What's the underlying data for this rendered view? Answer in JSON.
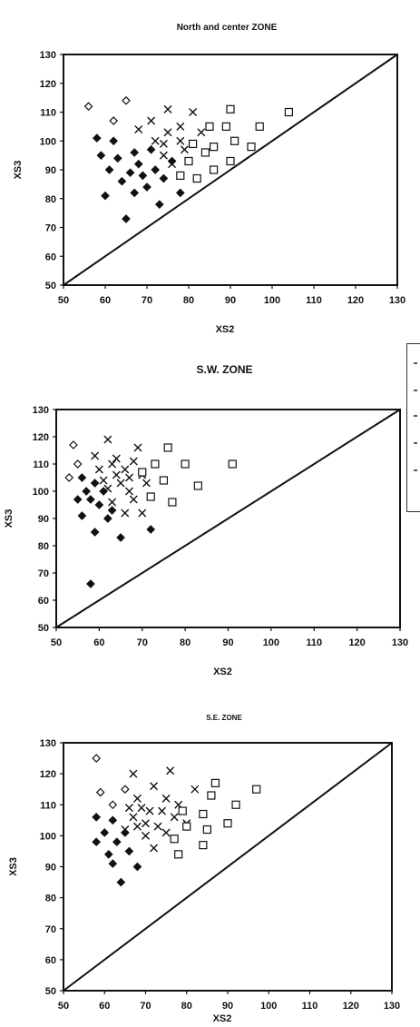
{
  "chart_data": [
    {
      "type": "scatter",
      "title": "North and center ZONE",
      "xlabel": "XS2",
      "ylabel": "XS3",
      "xlim": [
        50,
        130
      ],
      "ylim": [
        50,
        130
      ],
      "xticks": [
        "50",
        "60",
        "70",
        "80",
        "90",
        "100",
        "110",
        "120",
        "130"
      ],
      "yticks": [
        "50",
        "60",
        "70",
        "80",
        "90",
        "100",
        "110",
        "120",
        "130"
      ],
      "grid": false,
      "reference_line": [
        [
          50,
          50
        ],
        [
          130,
          130
        ]
      ],
      "series": [
        {
          "marker": "diamond-open",
          "points": [
            [
              56,
              112
            ],
            [
              62,
              107
            ],
            [
              65,
              114
            ]
          ]
        },
        {
          "marker": "diamond-filled",
          "points": [
            [
              58,
              101
            ],
            [
              59,
              95
            ],
            [
              60,
              81
            ],
            [
              61,
              90
            ],
            [
              62,
              100
            ],
            [
              63,
              94
            ],
            [
              64,
              86
            ],
            [
              65,
              73
            ],
            [
              66,
              89
            ],
            [
              67,
              96
            ],
            [
              67,
              82
            ],
            [
              68,
              92
            ],
            [
              69,
              88
            ],
            [
              70,
              84
            ],
            [
              71,
              97
            ],
            [
              72,
              90
            ],
            [
              73,
              78
            ],
            [
              74,
              87
            ],
            [
              76,
              93
            ],
            [
              78,
              82
            ]
          ]
        },
        {
          "marker": "x",
          "points": [
            [
              68,
              104
            ],
            [
              71,
              107
            ],
            [
              72,
              100
            ],
            [
              74,
              95
            ],
            [
              74,
              99
            ],
            [
              75,
              111
            ],
            [
              75,
              103
            ],
            [
              76,
              92
            ],
            [
              78,
              105
            ],
            [
              78,
              100
            ],
            [
              79,
              97
            ],
            [
              81,
              110
            ],
            [
              83,
              103
            ]
          ]
        },
        {
          "marker": "square-open",
          "points": [
            [
              78,
              88
            ],
            [
              80,
              93
            ],
            [
              81,
              99
            ],
            [
              82,
              87
            ],
            [
              84,
              96
            ],
            [
              85,
              105
            ],
            [
              86,
              90
            ],
            [
              86,
              98
            ],
            [
              89,
              105
            ],
            [
              90,
              93
            ],
            [
              90,
              111
            ],
            [
              91,
              100
            ],
            [
              95,
              98
            ],
            [
              97,
              105
            ],
            [
              104,
              110
            ]
          ]
        }
      ]
    },
    {
      "type": "scatter",
      "title": "S.W. ZONE",
      "xlabel": "XS2",
      "ylabel": "XS3",
      "xlim": [
        50,
        130
      ],
      "ylim": [
        50,
        130
      ],
      "xticks": [
        "50",
        "60",
        "70",
        "80",
        "90",
        "100",
        "110",
        "120",
        "130"
      ],
      "yticks": [
        "50",
        "60",
        "70",
        "80",
        "90",
        "100",
        "110",
        "120",
        "130"
      ],
      "grid": false,
      "reference_line": [
        [
          50,
          50
        ],
        [
          130,
          130
        ]
      ],
      "series": [
        {
          "marker": "diamond-open",
          "points": [
            [
              53,
              105
            ],
            [
              54,
              117
            ],
            [
              55,
              110
            ]
          ]
        },
        {
          "marker": "diamond-filled",
          "points": [
            [
              55,
              97
            ],
            [
              56,
              91
            ],
            [
              56,
              105
            ],
            [
              57,
              100
            ],
            [
              58,
              97
            ],
            [
              58,
              66
            ],
            [
              59,
              85
            ],
            [
              59,
              103
            ],
            [
              60,
              95
            ],
            [
              61,
              100
            ],
            [
              62,
              90
            ],
            [
              63,
              93
            ],
            [
              65,
              83
            ],
            [
              72,
              86
            ]
          ]
        },
        {
          "marker": "x",
          "points": [
            [
              59,
              113
            ],
            [
              60,
              108
            ],
            [
              61,
              104
            ],
            [
              62,
              119
            ],
            [
              62,
              101
            ],
            [
              63,
              96
            ],
            [
              63,
              110
            ],
            [
              64,
              106
            ],
            [
              64,
              112
            ],
            [
              65,
              103
            ],
            [
              66,
              108
            ],
            [
              66,
              92
            ],
            [
              67,
              105
            ],
            [
              67,
              100
            ],
            [
              68,
              97
            ],
            [
              68,
              111
            ],
            [
              69,
              116
            ],
            [
              70,
              106
            ],
            [
              70,
              92
            ],
            [
              71,
              103
            ]
          ]
        },
        {
          "marker": "square-open",
          "points": [
            [
              70,
              107
            ],
            [
              72,
              98
            ],
            [
              73,
              110
            ],
            [
              75,
              104
            ],
            [
              76,
              116
            ],
            [
              77,
              96
            ],
            [
              80,
              110
            ],
            [
              83,
              102
            ],
            [
              91,
              110
            ]
          ]
        }
      ]
    },
    {
      "type": "scatter",
      "title": "S.E. ZONE",
      "xlabel": "XS2",
      "ylabel": "XS3",
      "xlim": [
        50,
        130
      ],
      "ylim": [
        50,
        130
      ],
      "xticks": [
        "50",
        "60",
        "70",
        "80",
        "90",
        "100",
        "110",
        "120",
        "130"
      ],
      "yticks": [
        "50",
        "60",
        "70",
        "80",
        "90",
        "100",
        "110",
        "120",
        "130"
      ],
      "grid": false,
      "reference_line": [
        [
          50,
          50
        ],
        [
          130,
          130
        ]
      ],
      "series": [
        {
          "marker": "diamond-open",
          "points": [
            [
              58,
              125
            ],
            [
              59,
              114
            ],
            [
              62,
              110
            ],
            [
              65,
              115
            ]
          ]
        },
        {
          "marker": "diamond-filled",
          "points": [
            [
              58,
              106
            ],
            [
              58,
              98
            ],
            [
              60,
              101
            ],
            [
              61,
              94
            ],
            [
              62,
              91
            ],
            [
              62,
              105
            ],
            [
              63,
              98
            ],
            [
              64,
              85
            ],
            [
              65,
              101
            ],
            [
              66,
              95
            ],
            [
              68,
              90
            ]
          ]
        },
        {
          "marker": "x",
          "points": [
            [
              65,
              102
            ],
            [
              66,
              109
            ],
            [
              67,
              106
            ],
            [
              67,
              120
            ],
            [
              68,
              103
            ],
            [
              68,
              112
            ],
            [
              69,
              109
            ],
            [
              70,
              100
            ],
            [
              70,
              104
            ],
            [
              71,
              108
            ],
            [
              72,
              116
            ],
            [
              72,
              96
            ],
            [
              73,
              103
            ],
            [
              74,
              108
            ],
            [
              75,
              112
            ],
            [
              75,
              101
            ],
            [
              76,
              121
            ],
            [
              77,
              106
            ],
            [
              78,
              110
            ],
            [
              80,
              104
            ],
            [
              82,
              115
            ]
          ]
        },
        {
          "marker": "square-open",
          "points": [
            [
              77,
              99
            ],
            [
              78,
              94
            ],
            [
              79,
              108
            ],
            [
              80,
              103
            ],
            [
              84,
              107
            ],
            [
              84,
              97
            ],
            [
              85,
              102
            ],
            [
              86,
              113
            ],
            [
              87,
              117
            ],
            [
              90,
              104
            ],
            [
              92,
              110
            ],
            [
              97,
              115
            ]
          ]
        }
      ]
    }
  ]
}
